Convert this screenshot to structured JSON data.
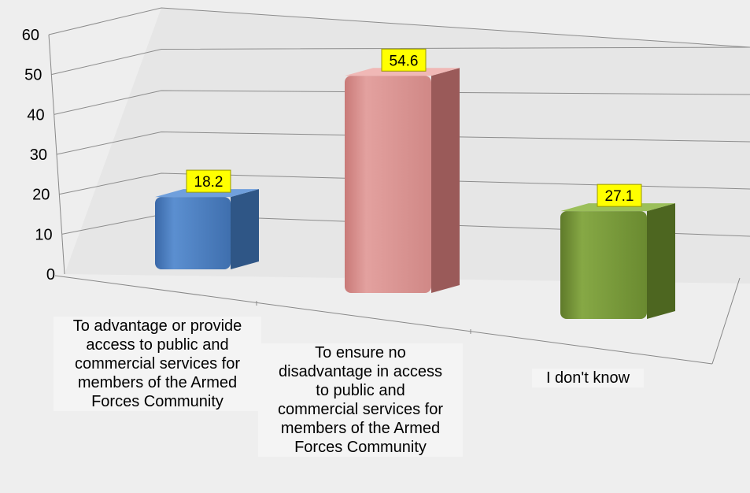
{
  "chart_data": {
    "type": "bar",
    "categories": [
      "To advantage or provide access to public and commercial services for members of the Armed Forces Community",
      "To ensure no disadvantage in access to public and commercial services for members of the Armed Forces Community",
      "I don't know"
    ],
    "values": [
      18.2,
      54.6,
      27.1
    ],
    "value_labels": [
      "18.2",
      "54.6",
      "27.1"
    ],
    "ylim": [
      0,
      60
    ],
    "yticks": [
      "0",
      "10",
      "20",
      "30",
      "40",
      "50",
      "60"
    ],
    "grid": true,
    "colors": [
      "#4f81bd",
      "#d99694",
      "#77933c"
    ],
    "label_color": "#ffff00"
  },
  "categories_display": [
    [
      "To advantage or provide",
      "access to public and",
      "commercial services for",
      "members of the Armed",
      "Forces Community"
    ],
    [
      "To ensure no",
      "disadvantage in access",
      "to public and",
      "commercial services for",
      "members of the Armed",
      "Forces Community"
    ],
    [
      "I don't know"
    ]
  ]
}
